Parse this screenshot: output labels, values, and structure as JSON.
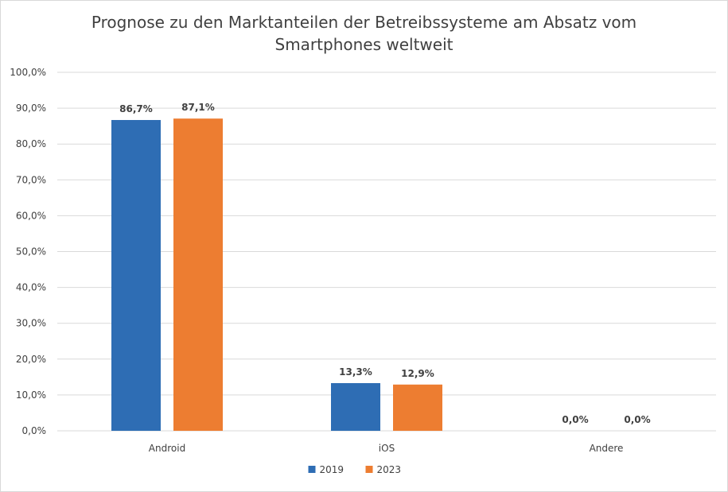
{
  "chart_data": {
    "type": "bar",
    "title_line1": "Prognose zu den Marktanteilen der Betreibssysteme am Absatz vom",
    "title_line2": "Smartphones weltweit",
    "categories": [
      "Android",
      "iOS",
      "Andere"
    ],
    "series": [
      {
        "name": "2019",
        "color": "#2e6db4",
        "values": [
          86.7,
          13.3,
          0.0
        ],
        "labels": [
          "86,7%",
          "13,3%",
          "0,0%"
        ]
      },
      {
        "name": "2023",
        "color": "#ed7d31",
        "values": [
          87.1,
          12.9,
          0.0
        ],
        "labels": [
          "87,1%",
          "12,9%",
          "0,0%"
        ]
      }
    ],
    "yticks": [
      "0,0%",
      "10,0%",
      "20,0%",
      "30,0%",
      "40,0%",
      "50,0%",
      "60,0%",
      "70,0%",
      "80,0%",
      "90,0%",
      "100,0%"
    ],
    "ylim": [
      0,
      100
    ],
    "grid": true,
    "gridline_color": "#d9d9d9",
    "legend_position": "bottom"
  }
}
